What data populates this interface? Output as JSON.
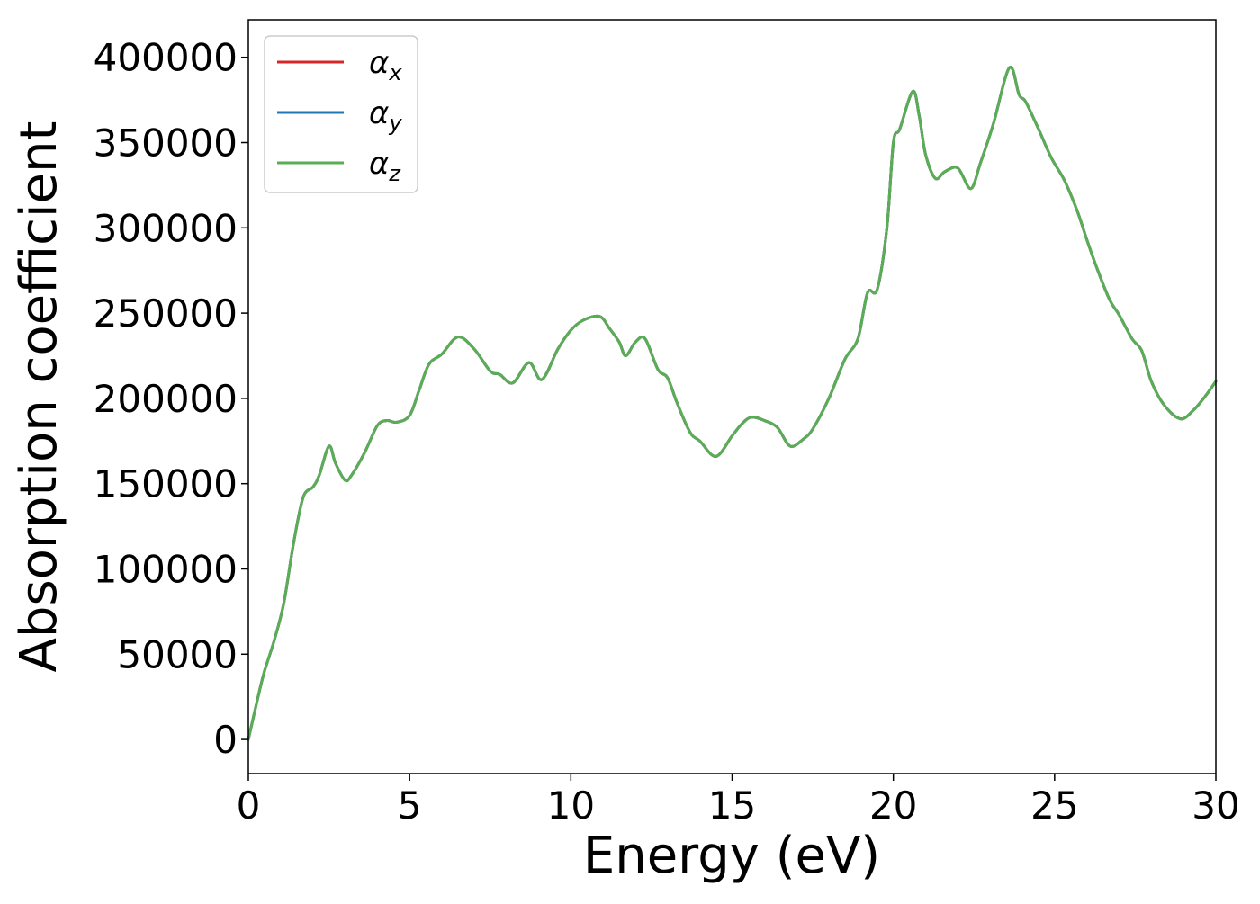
{
  "chart_data": {
    "type": "line",
    "title": "",
    "xlabel": "Energy (eV)",
    "ylabel": "Absorption coefficient",
    "xlim": [
      0,
      30
    ],
    "ylim": [
      -20000,
      422000
    ],
    "xticks": [
      0,
      5,
      10,
      15,
      20,
      25,
      30
    ],
    "xtick_labels": [
      "0",
      "5",
      "10",
      "15",
      "20",
      "25",
      "30"
    ],
    "yticks": [
      0,
      50000,
      100000,
      150000,
      200000,
      250000,
      300000,
      350000,
      400000
    ],
    "ytick_labels": [
      "0",
      "50000",
      "100000",
      "150000",
      "200000",
      "250000",
      "300000",
      "350000",
      "400000"
    ],
    "grid": false,
    "legend_position": "top-left",
    "x": [
      0,
      0.3,
      0.5,
      0.8,
      1.1,
      1.4,
      1.7,
      2.0,
      2.2,
      2.5,
      2.7,
      3.0,
      3.2,
      3.6,
      4.0,
      4.3,
      4.6,
      5.0,
      5.3,
      5.6,
      6.0,
      6.5,
      7.0,
      7.5,
      7.8,
      8.2,
      8.7,
      9.1,
      9.6,
      10.0,
      10.4,
      10.9,
      11.2,
      11.5,
      11.7,
      12.0,
      12.3,
      12.7,
      13.0,
      13.3,
      13.7,
      14.0,
      14.5,
      15.0,
      15.3,
      15.6,
      16.0,
      16.4,
      16.8,
      17.2,
      17.5,
      18.0,
      18.5,
      18.9,
      19.2,
      19.5,
      19.8,
      20.0,
      20.2,
      20.6,
      20.8,
      21.0,
      21.3,
      21.6,
      22.0,
      22.4,
      22.7,
      23.1,
      23.6,
      23.9,
      24.1,
      24.5,
      24.9,
      25.3,
      25.7,
      26.0,
      26.3,
      26.7,
      27.0,
      27.4,
      27.7,
      28.0,
      28.4,
      28.9,
      29.3,
      29.7,
      30.0
    ],
    "series": [
      {
        "name": "α",
        "sub": "x",
        "color": "#d62728",
        "values": [
          0,
          25000,
          40000,
          58000,
          80000,
          115000,
          142000,
          148000,
          155000,
          172000,
          162000,
          152000,
          155000,
          168000,
          184000,
          187000,
          186000,
          190000,
          205000,
          220000,
          226000,
          236000,
          229000,
          216000,
          214000,
          209000,
          221000,
          211000,
          229000,
          240000,
          246000,
          248000,
          241000,
          233000,
          225000,
          233000,
          235000,
          217000,
          212000,
          197000,
          180000,
          175000,
          166000,
          178000,
          185000,
          189000,
          187000,
          183000,
          172000,
          176000,
          182000,
          200000,
          223000,
          235000,
          262000,
          264000,
          300000,
          350000,
          358000,
          380000,
          366000,
          343000,
          329000,
          333000,
          335000,
          323000,
          338000,
          361000,
          394000,
          378000,
          374000,
          358000,
          341000,
          328000,
          310000,
          293000,
          277000,
          258000,
          249000,
          235000,
          228000,
          210000,
          196000,
          188000,
          193000,
          202000,
          210000
        ]
      },
      {
        "name": "α",
        "sub": "y",
        "color": "#1f77b4",
        "values": [
          0,
          25000,
          40000,
          58000,
          80000,
          115000,
          142000,
          148000,
          155000,
          172000,
          162000,
          152000,
          155000,
          168000,
          184000,
          187000,
          186000,
          190000,
          205000,
          220000,
          226000,
          236000,
          229000,
          216000,
          214000,
          209000,
          221000,
          211000,
          229000,
          240000,
          246000,
          248000,
          241000,
          233000,
          225000,
          233000,
          235000,
          217000,
          212000,
          197000,
          180000,
          175000,
          166000,
          178000,
          185000,
          189000,
          187000,
          183000,
          172000,
          176000,
          182000,
          200000,
          223000,
          235000,
          262000,
          264000,
          300000,
          350000,
          358000,
          380000,
          366000,
          343000,
          329000,
          333000,
          335000,
          323000,
          338000,
          361000,
          394000,
          378000,
          374000,
          358000,
          341000,
          328000,
          310000,
          293000,
          277000,
          258000,
          249000,
          235000,
          228000,
          210000,
          196000,
          188000,
          193000,
          202000,
          210000
        ]
      },
      {
        "name": "α",
        "sub": "z",
        "color": "#5aad54",
        "values": [
          0,
          25000,
          40000,
          58000,
          80000,
          115000,
          142000,
          148000,
          155000,
          172000,
          162000,
          152000,
          155000,
          168000,
          184000,
          187000,
          186000,
          190000,
          205000,
          220000,
          226000,
          236000,
          229000,
          216000,
          214000,
          209000,
          221000,
          211000,
          229000,
          240000,
          246000,
          248000,
          241000,
          233000,
          225000,
          233000,
          235000,
          217000,
          212000,
          197000,
          180000,
          175000,
          166000,
          178000,
          185000,
          189000,
          187000,
          183000,
          172000,
          176000,
          182000,
          200000,
          223000,
          235000,
          262000,
          264000,
          300000,
          350000,
          358000,
          380000,
          366000,
          343000,
          329000,
          333000,
          335000,
          323000,
          338000,
          361000,
          394000,
          378000,
          374000,
          358000,
          341000,
          328000,
          310000,
          293000,
          277000,
          258000,
          249000,
          235000,
          228000,
          210000,
          196000,
          188000,
          193000,
          202000,
          210000
        ]
      }
    ]
  }
}
